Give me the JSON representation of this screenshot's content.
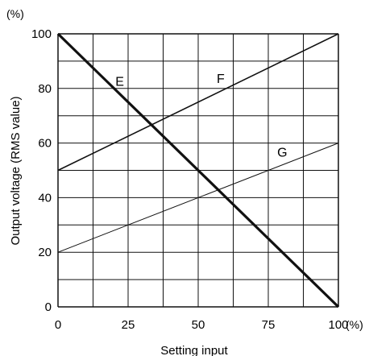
{
  "chart_data": {
    "type": "line",
    "title": "",
    "xlabel": "Setting input",
    "ylabel": "Output voltage (RMS value)",
    "x_unit": "(%)",
    "y_unit": "(%)",
    "xlim": [
      0,
      100
    ],
    "ylim": [
      0,
      100
    ],
    "x_ticks": [
      0,
      25,
      50,
      75,
      100
    ],
    "y_ticks": [
      0,
      20,
      40,
      60,
      80,
      100
    ],
    "x_tick_labels": [
      "0",
      "25",
      "50",
      "75",
      "100"
    ],
    "y_tick_labels": [
      "0",
      "20",
      "40",
      "60",
      "80",
      "100"
    ],
    "grid": true,
    "series": [
      {
        "name": "E",
        "x": [
          0,
          100
        ],
        "y": [
          100,
          0
        ],
        "weight": "heavy"
      },
      {
        "name": "F",
        "x": [
          0,
          100
        ],
        "y": [
          50,
          100
        ],
        "weight": "medium"
      },
      {
        "name": "G",
        "x": [
          0,
          100
        ],
        "y": [
          20,
          60
        ],
        "weight": "light"
      }
    ],
    "line_color": "#111111",
    "grid_color": "#111111"
  }
}
